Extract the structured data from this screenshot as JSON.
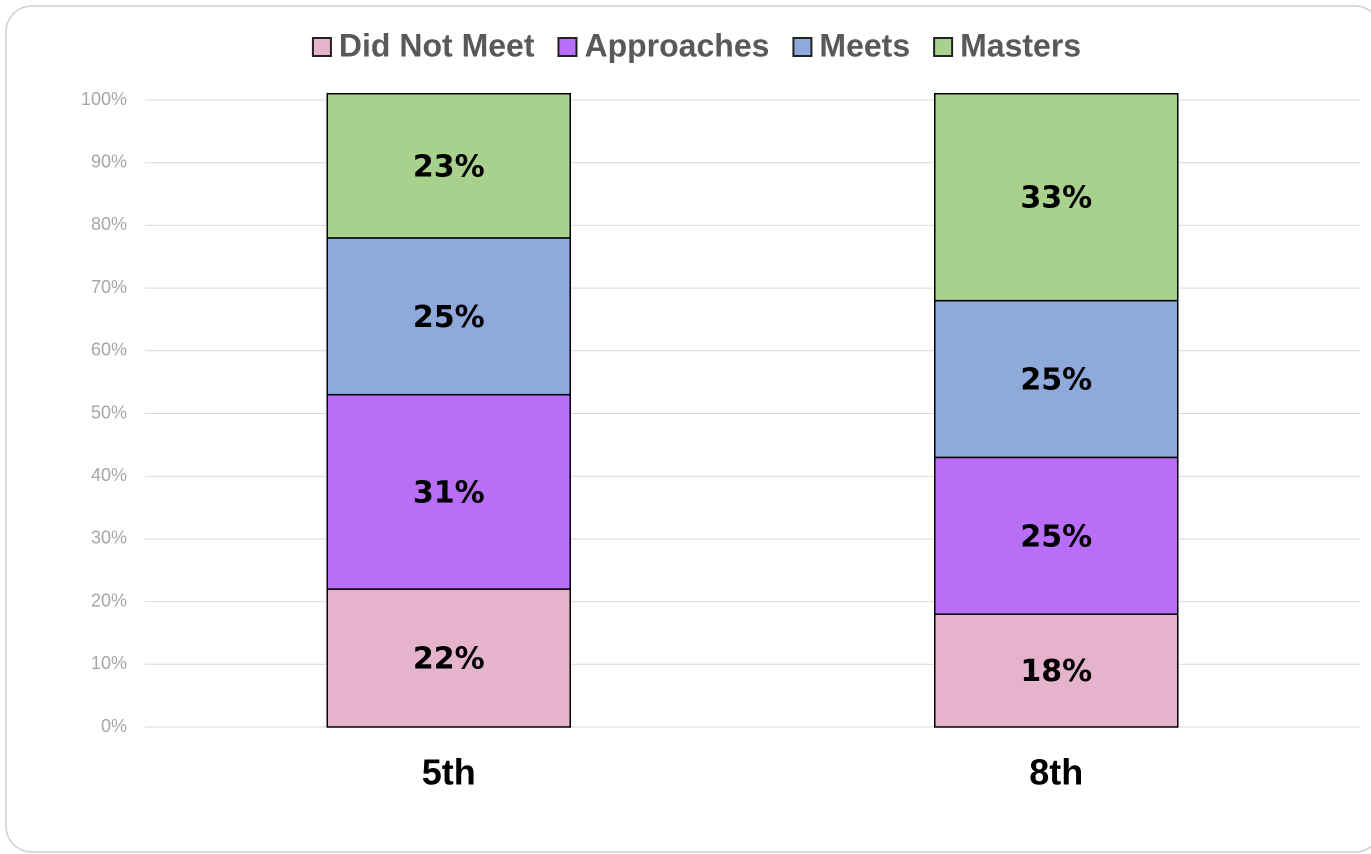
{
  "chart_data": {
    "type": "stacked_bar",
    "categories": [
      "5th",
      "8th"
    ],
    "series": [
      {
        "name": "Did Not Meet",
        "color": "#e6b3cd",
        "values": [
          22,
          18
        ],
        "value_labels": [
          "22%",
          "18%"
        ]
      },
      {
        "name": "Approaches",
        "color": "#b96ef7",
        "values": [
          31,
          25
        ],
        "value_labels": [
          "31%",
          "25%"
        ]
      },
      {
        "name": "Meets",
        "color": "#8eaadc",
        "values": [
          25,
          25
        ],
        "value_labels": [
          "25%",
          "25%"
        ]
      },
      {
        "name": "Masters",
        "color": "#a9d18e",
        "values": [
          23,
          33
        ],
        "value_labels": [
          "23%",
          "33%"
        ]
      }
    ],
    "ylim": [
      0,
      100
    ],
    "yticks": [
      {
        "value": 0,
        "label": "0%"
      },
      {
        "value": 10,
        "label": "10%"
      },
      {
        "value": 20,
        "label": "20%"
      },
      {
        "value": 30,
        "label": "30%"
      },
      {
        "value": 40,
        "label": "40%"
      },
      {
        "value": 50,
        "label": "50%"
      },
      {
        "value": 60,
        "label": "60%"
      },
      {
        "value": 70,
        "label": "70%"
      },
      {
        "value": 80,
        "label": "80%"
      },
      {
        "value": 90,
        "label": "90%"
      },
      {
        "value": 100,
        "label": "100%"
      }
    ],
    "grid": true,
    "legend": "top"
  }
}
